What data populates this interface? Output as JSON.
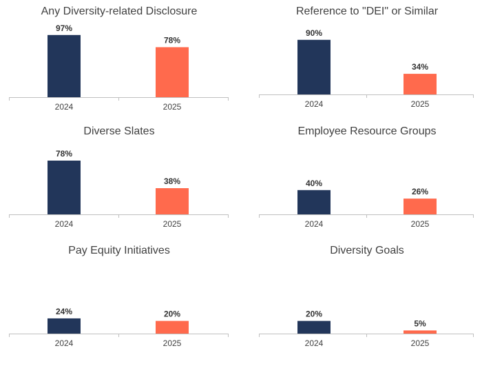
{
  "colors": {
    "y2024": "#22365A",
    "y2025": "#FF6A4D",
    "axis": "#BFBFBF",
    "text": "#404040"
  },
  "chart_data": [
    {
      "type": "bar",
      "title": "Any Diversity-related Disclosure",
      "categories": [
        "2024",
        "2025"
      ],
      "values": [
        97,
        78
      ],
      "labels": [
        "97%",
        "78%"
      ],
      "ylim": [
        0,
        100
      ],
      "grid": false,
      "legend": "none"
    },
    {
      "type": "bar",
      "title": "Reference to \"DEI\" or Similar",
      "categories": [
        "2024",
        "2025"
      ],
      "values": [
        90,
        34
      ],
      "labels": [
        "90%",
        "34%"
      ],
      "ylim": [
        0,
        100
      ],
      "grid": false,
      "legend": "none"
    },
    {
      "type": "bar",
      "title": "Diverse Slates",
      "categories": [
        "2024",
        "2025"
      ],
      "values": [
        78,
        38
      ],
      "labels": [
        "78%",
        "38%"
      ],
      "ylim": [
        0,
        100
      ],
      "grid": false,
      "legend": "none"
    },
    {
      "type": "bar",
      "title": "Employee Resource Groups",
      "categories": [
        "2024",
        "2025"
      ],
      "values": [
        40,
        26
      ],
      "labels": [
        "40%",
        "26%"
      ],
      "ylim": [
        0,
        100
      ],
      "grid": false,
      "legend": "none"
    },
    {
      "type": "bar",
      "title": "Pay Equity Initiatives",
      "categories": [
        "2024",
        "2025"
      ],
      "values": [
        24,
        20
      ],
      "labels": [
        "24%",
        "20%"
      ],
      "ylim": [
        0,
        100
      ],
      "grid": false,
      "legend": "none"
    },
    {
      "type": "bar",
      "title": "Diversity Goals",
      "categories": [
        "2024",
        "2025"
      ],
      "values": [
        20,
        5
      ],
      "labels": [
        "20%",
        "5%"
      ],
      "ylim": [
        0,
        100
      ],
      "grid": false,
      "legend": "none"
    }
  ]
}
